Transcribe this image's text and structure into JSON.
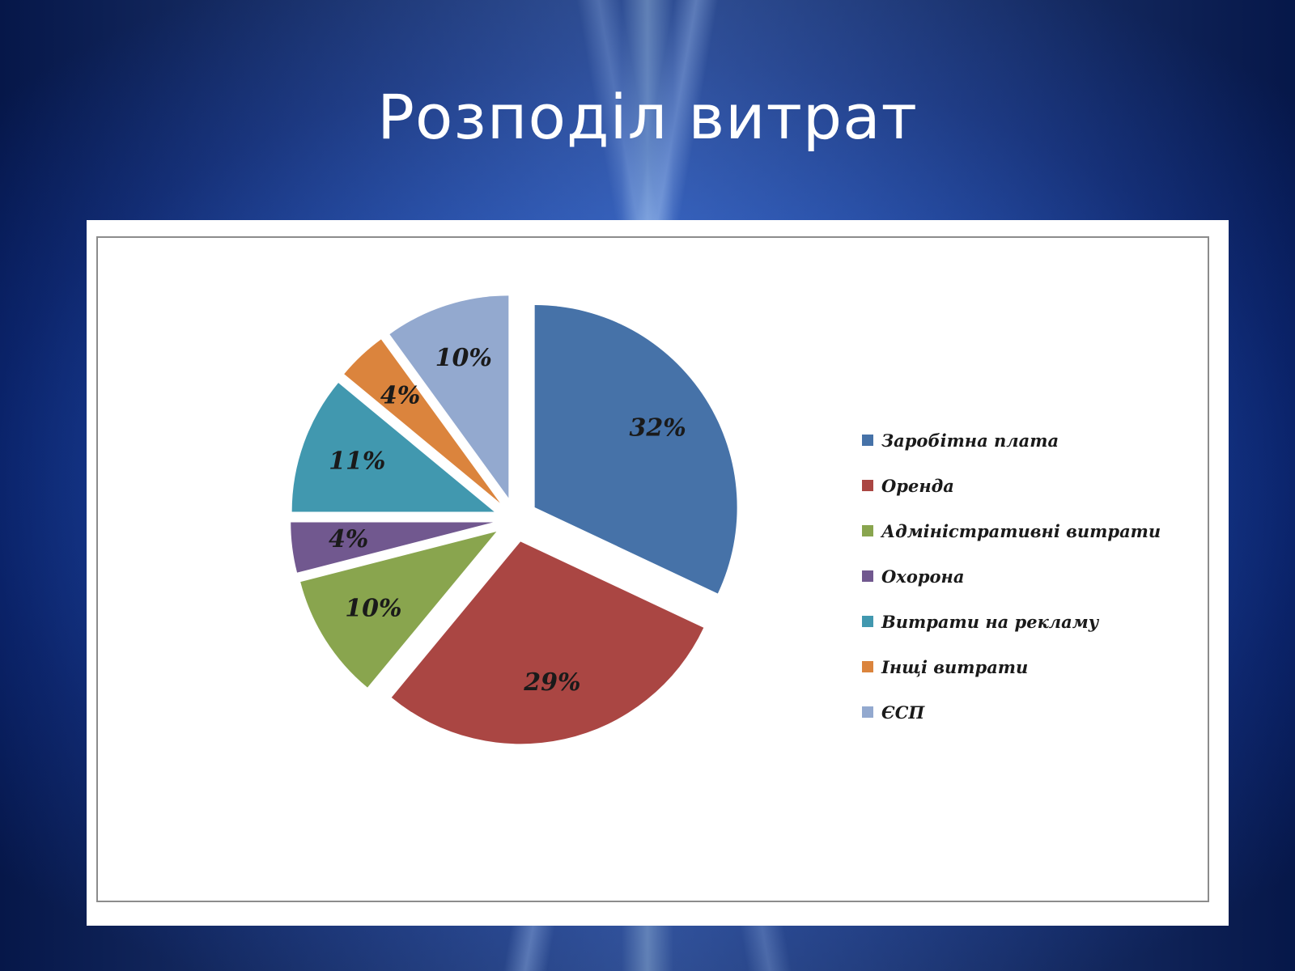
{
  "slide": {
    "title": "Розподіл витрат"
  },
  "chart_data": {
    "type": "pie",
    "title": "",
    "categories": [
      "Заробітна плата",
      "Оренда",
      "Адміністративні витрати",
      "Охорона",
      "Витрати на рекламу",
      "Інщі витрати",
      "ЄСП"
    ],
    "values": [
      32,
      29,
      10,
      4,
      11,
      4,
      10
    ],
    "labels": [
      "32%",
      "29%",
      "10%",
      "4%",
      "11%",
      "4%",
      "10%"
    ],
    "colors": [
      "#4672a8",
      "#aa4643",
      "#89a54e",
      "#71588f",
      "#4198af",
      "#db843d",
      "#93a9cf"
    ],
    "exploded": true,
    "legend_position": "right"
  }
}
